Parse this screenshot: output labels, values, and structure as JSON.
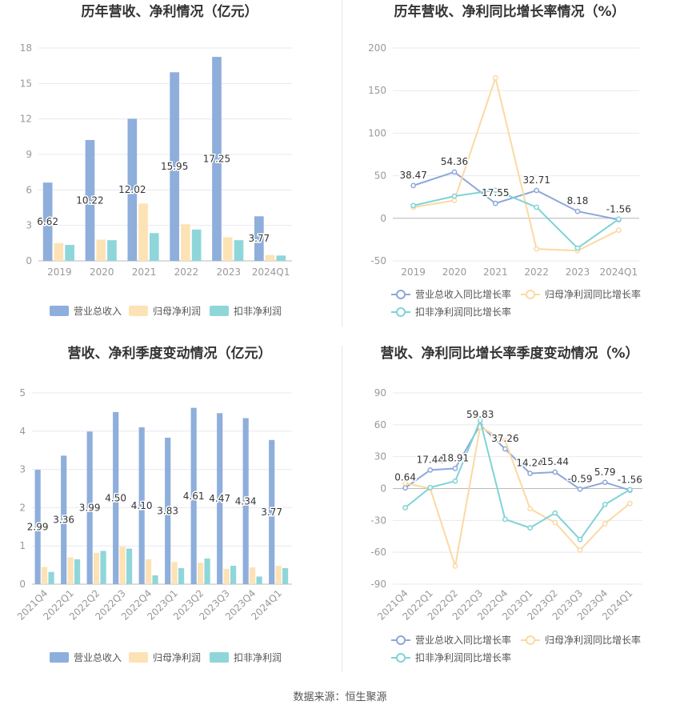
{
  "source": "数据来源：恒生聚源",
  "colors": {
    "revenue": "#8eaedb",
    "net_profit": "#fde2b5",
    "deducted": "#8fd6da",
    "growth_revenue": "#8ea7d9",
    "growth_net_profit": "#fbd9a2",
    "growth_deducted": "#7fd3d6",
    "axis_text": "#999999",
    "grid": "#e8e8f0"
  },
  "chart_data": [
    {
      "type": "bar",
      "title": "历年营收、净利情况（亿元）",
      "categories": [
        "2019",
        "2020",
        "2021",
        "2022",
        "2023",
        "2024Q1"
      ],
      "ylim": [
        0,
        18
      ],
      "yticks": [
        0,
        3,
        6,
        9,
        12,
        15,
        18
      ],
      "series": [
        {
          "name": "营业总收入",
          "values": [
            6.62,
            10.22,
            12.02,
            15.95,
            17.25,
            3.77
          ]
        },
        {
          "name": "归母净利润",
          "values": [
            1.5,
            1.8,
            4.85,
            3.1,
            2.0,
            0.5
          ]
        },
        {
          "name": "扣非净利润",
          "values": [
            1.35,
            1.75,
            2.35,
            2.65,
            1.75,
            0.45
          ]
        }
      ],
      "data_labels": [
        "6.62",
        "10.22",
        "12.02",
        "15.95",
        "17.25",
        "3.77"
      ]
    },
    {
      "type": "line",
      "title": "历年营收、净利同比增长率情况（%）",
      "categories": [
        "2019",
        "2020",
        "2021",
        "2022",
        "2023",
        "2024Q1"
      ],
      "ylim": [
        -50,
        200
      ],
      "yticks": [
        -50,
        0,
        50,
        100,
        150,
        200
      ],
      "series": [
        {
          "name": "营业总收入同比增长率",
          "values": [
            38.47,
            54.36,
            17.55,
            32.71,
            8.18,
            -1.56
          ]
        },
        {
          "name": "归母净利润同比增长率",
          "values": [
            13,
            21,
            165,
            -36,
            -38,
            -14
          ]
        },
        {
          "name": "扣非净利润同比增长率",
          "values": [
            15,
            26,
            33,
            13,
            -35,
            -1
          ]
        }
      ],
      "data_labels": [
        "38.47",
        "54.36",
        "17.55",
        "32.71",
        "8.18",
        "-1.56"
      ]
    },
    {
      "type": "bar",
      "title": "营收、净利季度变动情况（亿元）",
      "categories": [
        "2021Q4",
        "2022Q1",
        "2022Q2",
        "2022Q3",
        "2022Q4",
        "2023Q1",
        "2023Q2",
        "2023Q3",
        "2023Q4",
        "2024Q1"
      ],
      "ylim": [
        0,
        5
      ],
      "yticks": [
        0,
        1,
        2,
        3,
        4,
        5
      ],
      "series": [
        {
          "name": "营业总收入",
          "values": [
            2.99,
            3.36,
            3.99,
            4.5,
            4.1,
            3.83,
            4.61,
            4.47,
            4.34,
            3.77
          ]
        },
        {
          "name": "归母净利润",
          "values": [
            0.45,
            0.7,
            0.82,
            0.98,
            0.65,
            0.58,
            0.56,
            0.4,
            0.44,
            0.48
          ]
        },
        {
          "name": "扣非净利润",
          "values": [
            0.32,
            0.65,
            0.87,
            0.93,
            0.23,
            0.42,
            0.67,
            0.48,
            0.2,
            0.42
          ]
        }
      ],
      "data_labels": [
        "2.99",
        "3.36",
        "3.99",
        "4.50",
        "4.10",
        "3.83",
        "4.61",
        "4.47",
        "4.34",
        "3.77"
      ]
    },
    {
      "type": "line",
      "title": "营收、净利同比增长率季度变动情况（%）",
      "categories": [
        "2021Q4",
        "2022Q1",
        "2022Q2",
        "2022Q3",
        "2022Q4",
        "2023Q1",
        "2023Q2",
        "2023Q3",
        "2023Q4",
        "2024Q1"
      ],
      "ylim": [
        -90,
        90
      ],
      "yticks": [
        -90,
        -60,
        -30,
        0,
        30,
        60,
        90
      ],
      "series": [
        {
          "name": "营业总收入同比增长率",
          "values": [
            0.64,
            17.44,
            18.91,
            59.83,
            37.26,
            14.24,
            15.44,
            -0.59,
            5.79,
            -1.56
          ]
        },
        {
          "name": "归母净利润同比增长率",
          "values": [
            5,
            0,
            -73,
            58,
            45,
            -19,
            -32,
            -58,
            -33,
            -14
          ]
        },
        {
          "name": "扣非净利润同比增长率",
          "values": [
            -18,
            1,
            7,
            64,
            -29,
            -37,
            -23,
            -48,
            -15,
            -1
          ]
        }
      ],
      "data_labels": [
        "0.64",
        "17.44",
        "18.91",
        "59.83",
        "37.26",
        "14.24",
        "15.44",
        "-0.59",
        "5.79",
        "-1.56"
      ]
    }
  ]
}
